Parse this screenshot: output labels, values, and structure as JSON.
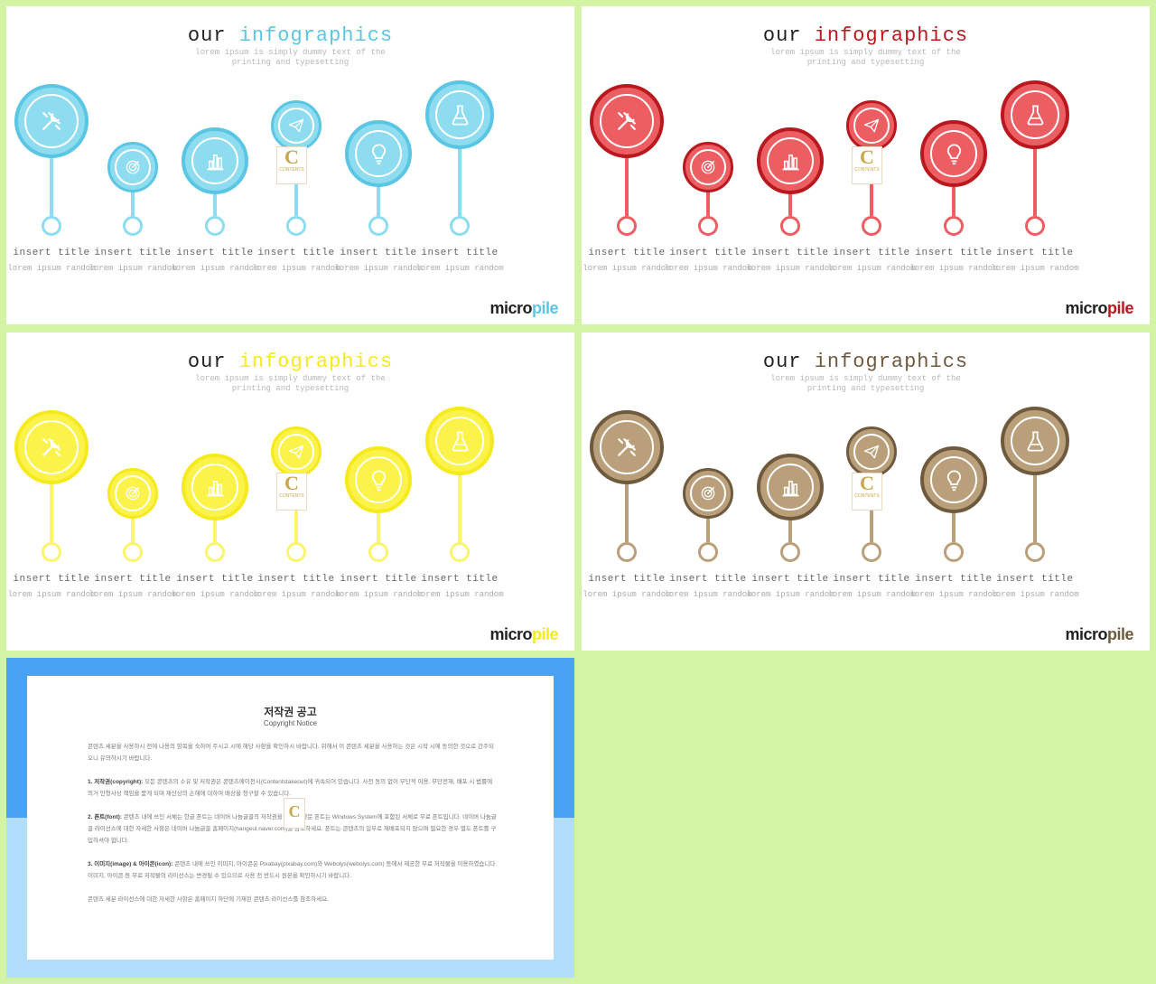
{
  "slides": [
    {
      "title_plain": "our",
      "title_accent": "infographics",
      "subtitle": "lorem ipsum is simply dummy text of the printing and typesetting",
      "accent": "#5bc6e3",
      "fill": "#8ddcf0",
      "light": "#8ddcf0",
      "logo_micro": "micro",
      "logo_pile": "pile",
      "items": [
        {
          "title": "insert title",
          "desc": "lorem ipsum random",
          "icon": "tools-icon"
        },
        {
          "title": "insert title",
          "desc": "lorem ipsum random",
          "icon": "target-icon"
        },
        {
          "title": "insert title",
          "desc": "lorem ipsum random",
          "icon": "bar-chart-icon"
        },
        {
          "title": "insert title",
          "desc": "lorem ipsum random",
          "icon": "paper-plane-icon"
        },
        {
          "title": "insert title",
          "desc": "lorem ipsum random",
          "icon": "lightbulb-icon"
        },
        {
          "title": "insert title",
          "desc": "lorem ipsum random",
          "icon": "flask-icon"
        }
      ]
    },
    {
      "title_plain": "our",
      "title_accent": "infographics",
      "subtitle": "lorem ipsum is simply dummy text of the printing and typesetting",
      "accent": "#b9191e",
      "fill": "#ed5e63",
      "light": "#ed5e63",
      "logo_micro": "micro",
      "logo_pile": "pile",
      "items": [
        {
          "title": "insert title",
          "desc": "lorem ipsum random",
          "icon": "tools-icon"
        },
        {
          "title": "insert title",
          "desc": "lorem ipsum random",
          "icon": "target-icon"
        },
        {
          "title": "insert title",
          "desc": "lorem ipsum random",
          "icon": "bar-chart-icon"
        },
        {
          "title": "insert title",
          "desc": "lorem ipsum random",
          "icon": "paper-plane-icon"
        },
        {
          "title": "insert title",
          "desc": "lorem ipsum random",
          "icon": "lightbulb-icon"
        },
        {
          "title": "insert title",
          "desc": "lorem ipsum random",
          "icon": "flask-icon"
        }
      ]
    },
    {
      "title_plain": "our",
      "title_accent": "infographics",
      "subtitle": "lorem ipsum is simply dummy text of the printing and typesetting",
      "accent": "#f5ea1e",
      "fill": "#fbf34a",
      "light": "#fbf56e",
      "logo_micro": "micro",
      "logo_pile": "pile",
      "items": [
        {
          "title": "insert title",
          "desc": "lorem ipsum random",
          "icon": "tools-icon"
        },
        {
          "title": "insert title",
          "desc": "lorem ipsum random",
          "icon": "target-icon"
        },
        {
          "title": "insert title",
          "desc": "lorem ipsum random",
          "icon": "bar-chart-icon"
        },
        {
          "title": "insert title",
          "desc": "lorem ipsum random",
          "icon": "paper-plane-icon"
        },
        {
          "title": "insert title",
          "desc": "lorem ipsum random",
          "icon": "lightbulb-icon"
        },
        {
          "title": "insert title",
          "desc": "lorem ipsum random",
          "icon": "flask-icon"
        }
      ]
    },
    {
      "title_plain": "our",
      "title_accent": "infographics",
      "subtitle": "lorem ipsum is simply dummy text of the printing and typesetting",
      "accent": "#6f5a3e",
      "fill": "#b9a07a",
      "light": "#b9a07a",
      "logo_micro": "micro",
      "logo_pile": "pile",
      "items": [
        {
          "title": "insert title",
          "desc": "lorem ipsum random",
          "icon": "tools-icon"
        },
        {
          "title": "insert title",
          "desc": "lorem ipsum random",
          "icon": "target-icon"
        },
        {
          "title": "insert title",
          "desc": "lorem ipsum random",
          "icon": "bar-chart-icon"
        },
        {
          "title": "insert title",
          "desc": "lorem ipsum random",
          "icon": "paper-plane-icon"
        },
        {
          "title": "insert title",
          "desc": "lorem ipsum random",
          "icon": "lightbulb-icon"
        },
        {
          "title": "insert title",
          "desc": "lorem ipsum random",
          "icon": "flask-icon"
        }
      ]
    }
  ],
  "notice": {
    "title": "저작권 공고",
    "subtitle": "Copyright Notice",
    "paragraphs": [
      {
        "lead": "",
        "text": "콘텐츠 세분을 사용하시 전에 나용의 항목을 숙하여 주시고 시에 해당 사항을 확인하시 바랍니다. 위해서 이 콘텐츠 세분을 사용하는 것은 시작 시에 동의한 것으로 간주되오니 유의하시기 바랍니다."
      },
      {
        "lead": "1. 저작권(copyright):",
        "text": "모든 콘텐츠의 소유 및 저작권은 콘텐츠에이전시(Contentstakeout)에 귀속되어 있습니다. 사전 동의 없이 무단적 이용, 무단전재, 배포 시 법률에 의거 민형사상 책임을 묻게 되며 재산상의 손해에 대하여 배상을 청구할 수 있습니다."
      },
      {
        "lead": "2. 폰트(font):",
        "text": "콘텐츠 내에 쓰인 서체는 한글 폰트는 네이버 나눔글꼴의 저작권을 따르며 영문 폰트는 Windows System에 포함된 서체로 무료 폰트입니다. 네이버 나눔글꼴 라이선스에 대한 자세한 사항은 네이버 나눔글꼴 홈페이지(hangeul.naver.com)를 참조하세요. 폰트는 콘텐츠의 일부로 재배포되지 않으며 필요한 경우 별도 폰트를 구입하셔야 합니다."
      },
      {
        "lead": "3. 이미지(image) & 아이콘(icon):",
        "text": "콘텐츠 내에 쓰인 이미지, 아이콘은 Pixabay(pixabay.com)와 Webolys(webolys.com) 등에서 제공한 무료 저작물을 이용하였습니다. 이미지, 아이콘 등 무료 저작물의 라이선스는 변경될 수 있으므로 사용 전 반드시 원본을 확인하시기 바랍니다."
      },
      {
        "lead": "",
        "text": "콘텐츠 세분 라이선스에 대한 자세한 사항은 홈페이지 하단에 기재된 콘텐츠 라이선스를 참조하세요."
      }
    ]
  }
}
